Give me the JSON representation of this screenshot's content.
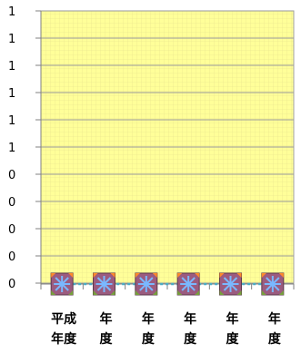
{
  "chart_data": {
    "type": "line",
    "title": "",
    "xlabel": "",
    "ylabel": "",
    "categories": [
      [
        "平成",
        "年度"
      ],
      [
        "年",
        "度"
      ],
      [
        "年",
        "度"
      ],
      [
        "年",
        "度"
      ],
      [
        "年",
        "度"
      ],
      [
        "年",
        "度"
      ]
    ],
    "y_tick_labels": [
      "1",
      "1",
      "1",
      "1",
      "1",
      "1",
      "0",
      "0",
      "0",
      "0",
      "0"
    ],
    "ylim": [
      0,
      1
    ],
    "series": [
      {
        "values": [
          0,
          0,
          0,
          0,
          0,
          0
        ],
        "color": "#4bacc6",
        "marker": "square-with-asterisk"
      }
    ],
    "plot_background": "#ffff99",
    "grid": true,
    "legend": "none"
  }
}
